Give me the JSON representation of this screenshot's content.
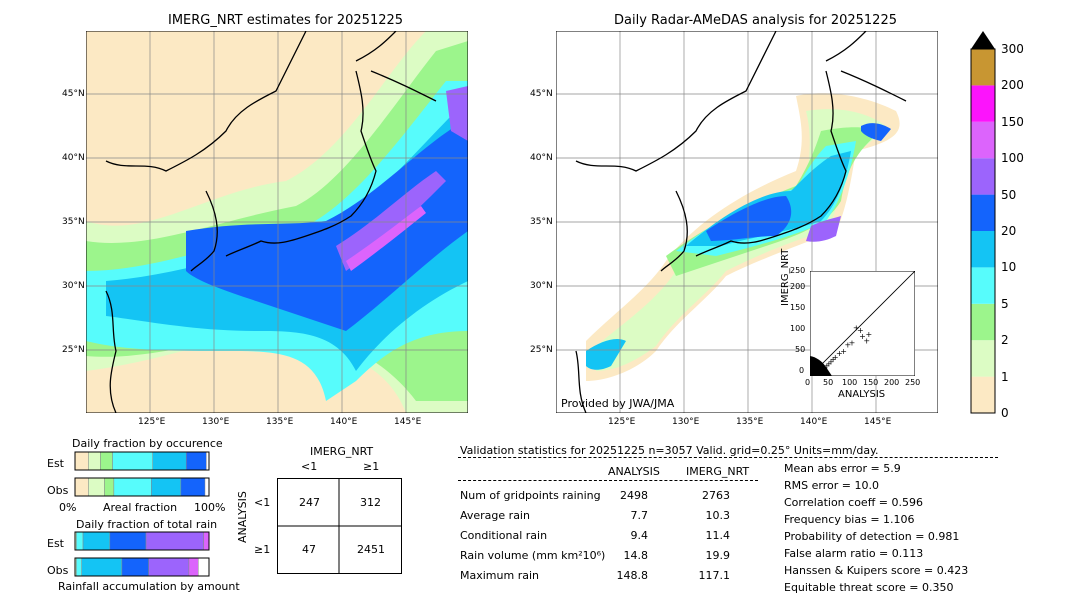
{
  "left_map": {
    "title": "IMERG_NRT estimates for 20251225",
    "lat_labels": [
      "45°N",
      "40°N",
      "35°N",
      "30°N",
      "25°N"
    ],
    "lon_labels": [
      "125°E",
      "130°E",
      "135°E",
      "140°E",
      "145°E"
    ]
  },
  "right_map": {
    "title": "Daily Radar-AMeDAS analysis for 20251225",
    "lat_labels": [
      "45°N",
      "40°N",
      "35°N",
      "30°N",
      "25°N"
    ],
    "lon_labels": [
      "125°E",
      "130°E",
      "135°E",
      "140°E",
      "145°E"
    ],
    "credit": "Provided by JWA/JMA"
  },
  "colorbar": {
    "ticks": [
      "0",
      "1",
      "2",
      "5",
      "10",
      "20",
      "50",
      "100",
      "150",
      "200",
      "300"
    ],
    "colors": [
      "#fce9c4",
      "#dcfcc4",
      "#9cf58c",
      "#57fcfc",
      "#14c4f4",
      "#1464fc",
      "#9c64fc",
      "#dc64fc",
      "#fc14fc",
      "#c89632"
    ]
  },
  "scatter": {
    "ylabel": "IMERG_NRT",
    "xlabel": "ANALYSIS",
    "ticks": [
      "0",
      "50",
      "100",
      "150",
      "200",
      "250"
    ]
  },
  "occurrence": {
    "title": "Daily fraction by occurence",
    "rows": [
      "Est",
      "Obs"
    ],
    "axis_left": "0%",
    "axis_mid": "Areal fraction",
    "axis_right": "100%"
  },
  "total_rain": {
    "title": "Daily fraction of total rain",
    "rows": [
      "Est",
      "Obs"
    ],
    "footer": "Rainfall accumulation by amount"
  },
  "contingency": {
    "title": "IMERG_NRT",
    "col_headers": [
      "<1",
      "≥1"
    ],
    "row_label": "ANALYSIS",
    "row_headers": [
      "<1",
      "≥1"
    ],
    "cells": [
      [
        "247",
        "312"
      ],
      [
        "47",
        "2451"
      ]
    ]
  },
  "validation": {
    "header": "Validation statistics for 20251225  n=3057 Valid. grid=0.25° Units=mm/day.",
    "col_analysis": "ANALYSIS",
    "col_imerg": "IMERG_NRT",
    "rows": [
      {
        "label": "Num of gridpoints raining",
        "analysis": "2498",
        "imerg": "2763"
      },
      {
        "label": "Average rain",
        "analysis": "7.7",
        "imerg": "10.3"
      },
      {
        "label": "Conditional rain",
        "analysis": "9.4",
        "imerg": "11.4"
      },
      {
        "label": "Rain volume (mm km²10⁶)",
        "analysis": "14.8",
        "imerg": "19.9"
      },
      {
        "label": "Maximum rain",
        "analysis": "148.8",
        "imerg": "117.1"
      }
    ],
    "scores": [
      "Mean abs error =    5.9",
      "RMS error =   10.0",
      "Correlation coeff =  0.596",
      "Frequency bias =  1.106",
      "Probability of detection =  0.981",
      "False alarm ratio =  0.113",
      "Hanssen & Kuipers score =  0.423",
      "Equitable threat score =  0.350"
    ]
  },
  "chart_data": [
    {
      "type": "heatmap",
      "title": "IMERG_NRT estimates for 20251225",
      "x_ticks": [
        "125°E",
        "130°E",
        "135°E",
        "140°E",
        "145°E"
      ],
      "y_ticks": [
        "45°N",
        "40°N",
        "35°N",
        "30°N",
        "25°N"
      ]
    },
    {
      "type": "heatmap",
      "title": "Daily Radar-AMeDAS analysis for 20251225",
      "x_ticks": [
        "125°E",
        "130°E",
        "135°E",
        "140°E",
        "145°E"
      ],
      "y_ticks": [
        "45°N",
        "40°N",
        "35°N",
        "30°N",
        "25°N"
      ]
    },
    {
      "type": "scatter",
      "xlabel": "ANALYSIS",
      "ylabel": "IMERG_NRT",
      "xlim": [
        0,
        250
      ],
      "ylim": [
        0,
        250
      ],
      "x": [
        110,
        120,
        125,
        135,
        140,
        100,
        90,
        80,
        70,
        60,
        55,
        50,
        45,
        40,
        35,
        30
      ],
      "y": [
        115,
        110,
        95,
        85,
        100,
        80,
        75,
        60,
        55,
        45,
        40,
        35,
        30,
        25,
        20,
        18
      ]
    },
    {
      "type": "bar",
      "title": "Daily fraction by occurence",
      "categories": [
        "Est",
        "Obs"
      ],
      "series": [
        {
          "values": [
            0.1,
            0.1
          ]
        },
        {
          "values": [
            0.09,
            0.12
          ]
        },
        {
          "values": [
            0.09,
            0.07
          ]
        },
        {
          "values": [
            0.3,
            0.28
          ]
        },
        {
          "values": [
            0.25,
            0.22
          ]
        },
        {
          "values": [
            0.15,
            0.18
          ]
        }
      ]
    },
    {
      "type": "bar",
      "title": "Daily fraction of total rain",
      "categories": [
        "Est",
        "Obs"
      ],
      "series": [
        {
          "values": [
            0.01,
            0.01
          ]
        },
        {
          "values": [
            0.05,
            0.04
          ]
        },
        {
          "values": [
            0.2,
            0.3
          ]
        },
        {
          "values": [
            0.27,
            0.2
          ]
        },
        {
          "values": [
            0.43,
            0.3
          ]
        },
        {
          "values": [
            0.04,
            0.07
          ]
        }
      ]
    }
  ]
}
